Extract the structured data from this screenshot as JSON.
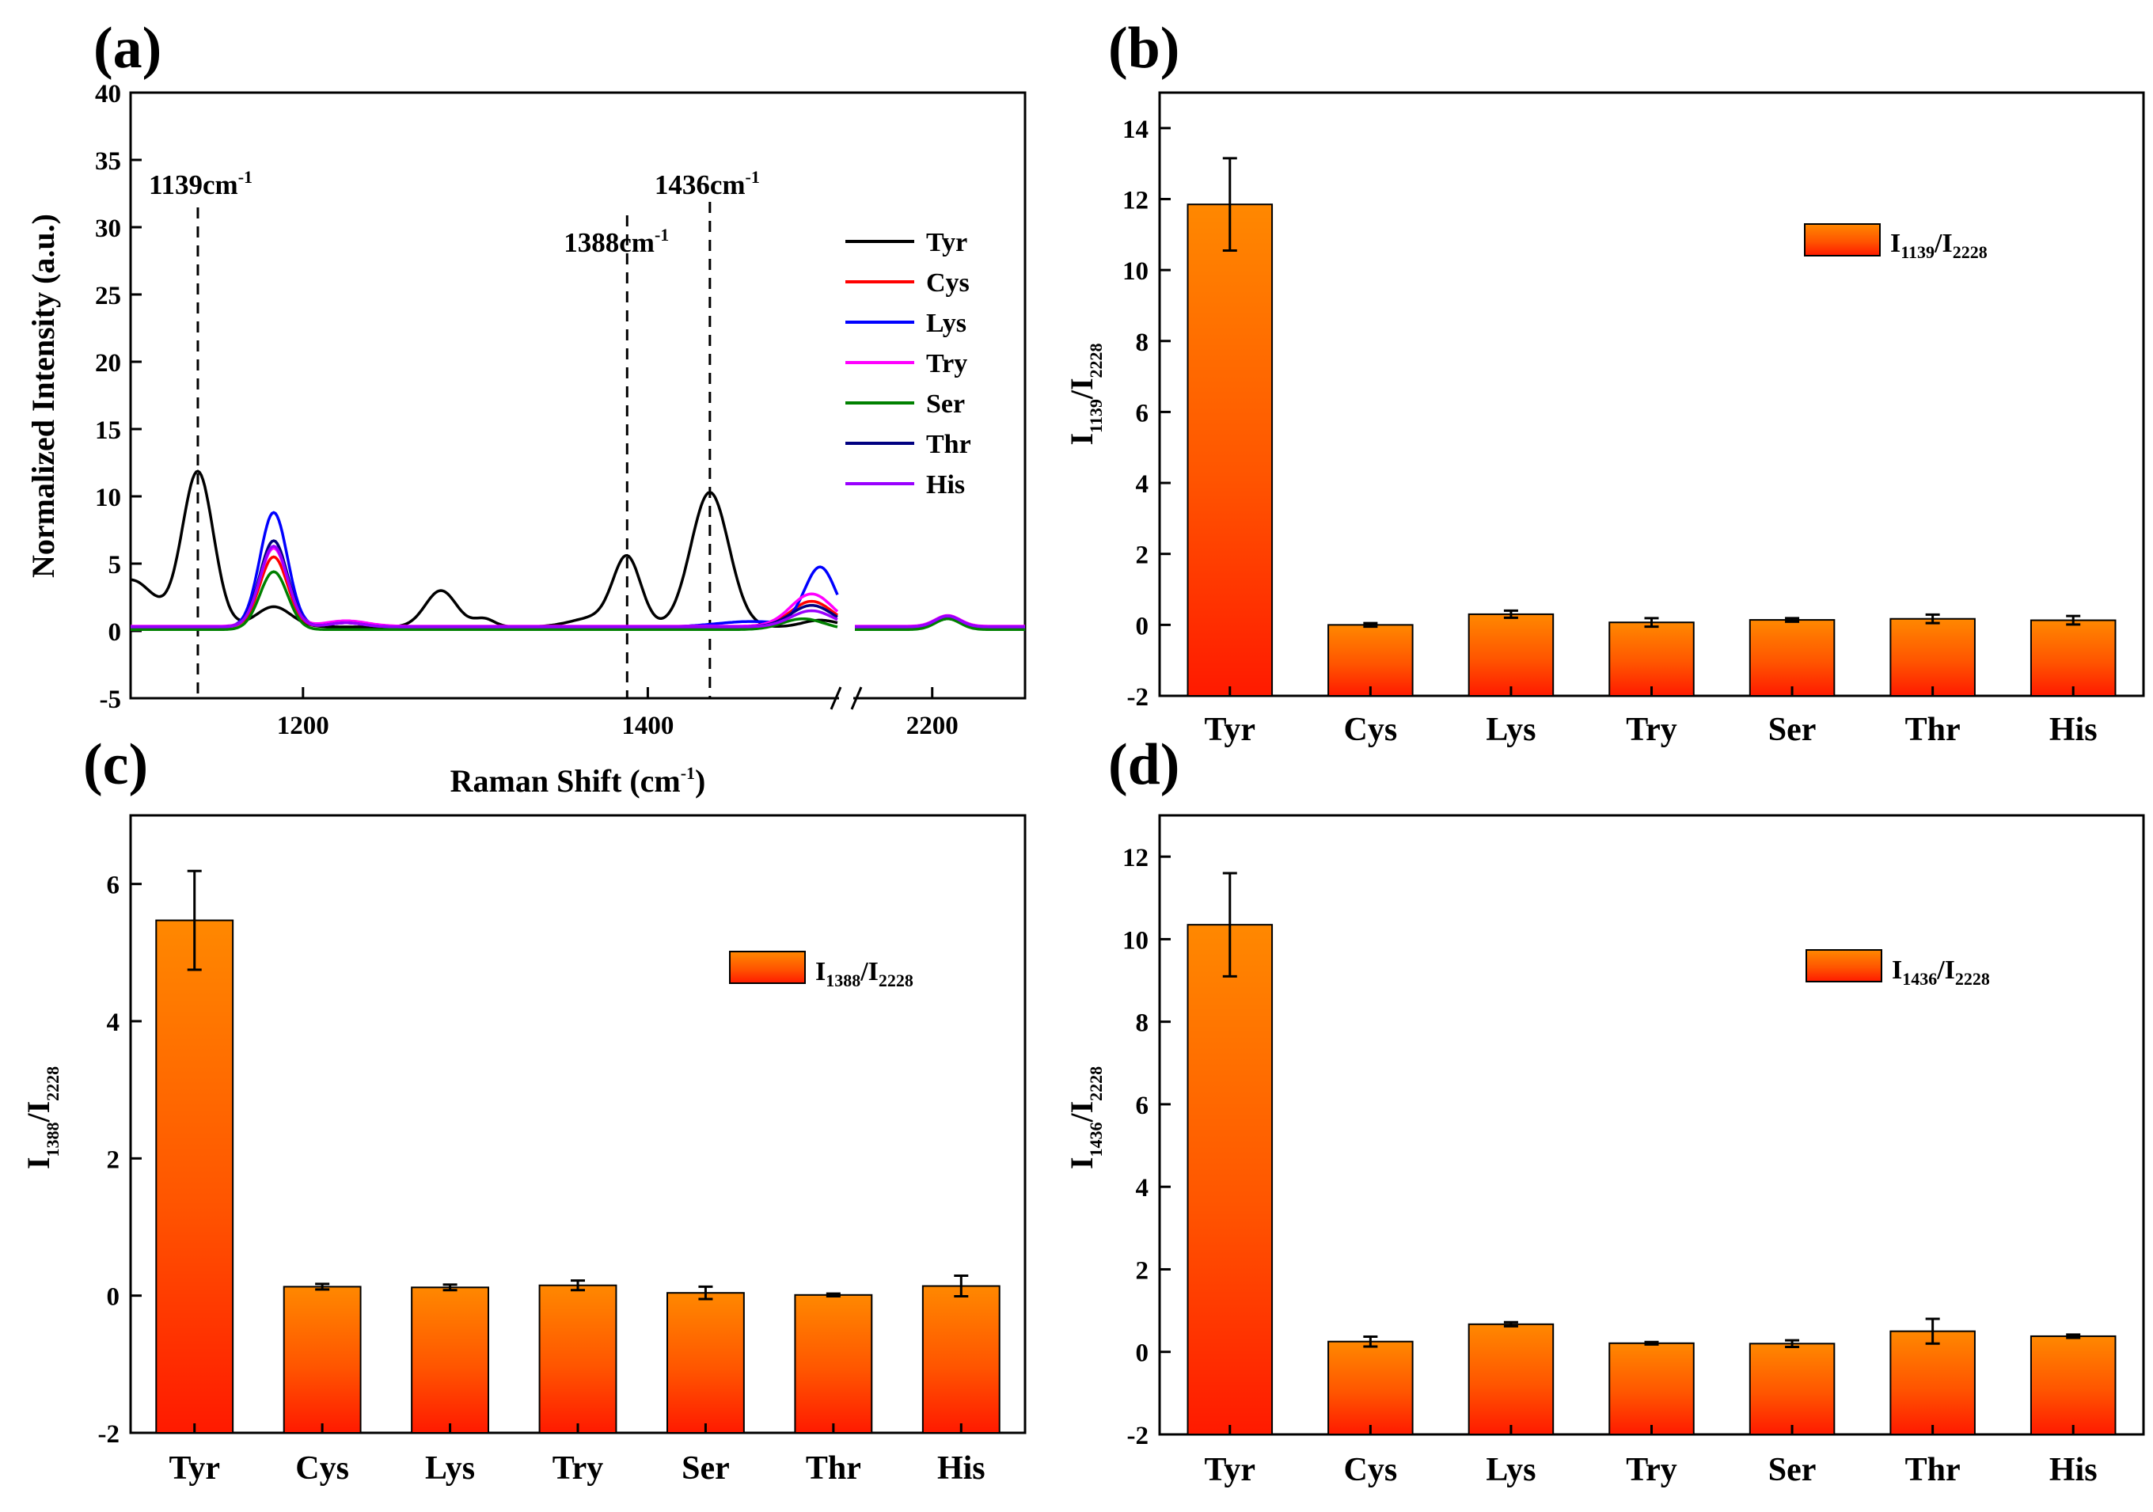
{
  "panels": {
    "a": {
      "label": "(a)",
      "chart_data": {
        "type": "line",
        "xlabel": "Raman Shift (cm",
        "xlabel_sup": "-1",
        "xlabel_close": ")",
        "ylabel": "Normalized Intensity (a.u.)",
        "ylim": [
          -5,
          40
        ],
        "yticks": [
          "-5",
          "0",
          "5",
          "10",
          "15",
          "20",
          "25",
          "30",
          "35",
          "40"
        ],
        "x_segment_1": [
          1100,
          1510
        ],
        "x_segment_2": [
          2150,
          2260
        ],
        "x_break": true,
        "xticks": [
          "1200",
          "1400",
          "2200"
        ],
        "annotations": [
          {
            "x": 1139,
            "text": "1139cm",
            "sup": "-1"
          },
          {
            "x": 1388,
            "text": "1388cm",
            "sup": "-1"
          },
          {
            "x": 1436,
            "text": "1436cm",
            "sup": "-1"
          }
        ],
        "series": [
          {
            "name": "Tyr",
            "color": "#000000",
            "base": 0.3,
            "peaks": [
              [
                1100,
                3.5,
                14
              ],
              [
                1139,
                11.5,
                9
              ],
              [
                1183,
                1.5,
                10
              ],
              [
                1280,
                2.7,
                9
              ],
              [
                1305,
                0.6,
                6
              ],
              [
                1370,
                0.7,
                14
              ],
              [
                1388,
                5.0,
                8
              ],
              [
                1436,
                10.0,
                11
              ],
              [
                1500,
                0.5,
                10
              ]
            ],
            "peaks2": [
              [
                2210,
                0.6,
                8
              ]
            ]
          },
          {
            "name": "Cys",
            "color": "#ff0000",
            "base": 0.3,
            "peaks": [
              [
                1183,
                5.2,
                8
              ],
              [
                1225,
                0.3,
                10
              ],
              [
                1495,
                1.9,
                12
              ]
            ],
            "peaks2": [
              [
                2210,
                0.8,
                8
              ]
            ]
          },
          {
            "name": "Lys",
            "color": "#0000ff",
            "base": 0.3,
            "peaks": [
              [
                1183,
                8.5,
                8
              ],
              [
                1225,
                0.3,
                10
              ],
              [
                1460,
                0.4,
                20
              ],
              [
                1500,
                4.4,
                9
              ]
            ],
            "peaks2": [
              [
                2210,
                0.8,
                8
              ]
            ]
          },
          {
            "name": "Try",
            "color": "#ff00ff",
            "base": 0.35,
            "peaks": [
              [
                1183,
                5.8,
                8
              ],
              [
                1225,
                0.4,
                12
              ],
              [
                1495,
                2.4,
                12
              ]
            ],
            "peaks2": [
              [
                2210,
                0.8,
                8
              ]
            ]
          },
          {
            "name": "Ser",
            "color": "#008000",
            "base": 0.1,
            "peaks": [
              [
                1183,
                4.3,
                8
              ],
              [
                1490,
                0.8,
                12
              ]
            ],
            "peaks2": [
              [
                2210,
                0.8,
                8
              ]
            ]
          },
          {
            "name": "Thr",
            "color": "#000080",
            "base": 0.3,
            "peaks": [
              [
                1183,
                6.4,
                8
              ],
              [
                1225,
                0.3,
                10
              ],
              [
                1495,
                1.6,
                12
              ]
            ],
            "peaks2": [
              [
                2210,
                0.8,
                8
              ]
            ]
          },
          {
            "name": "His",
            "color": "#9900ff",
            "base": 0.3,
            "peaks": [
              [
                1183,
                6.0,
                8
              ],
              [
                1225,
                0.3,
                10
              ],
              [
                1495,
                1.2,
                12
              ]
            ],
            "peaks2": [
              [
                2210,
                0.8,
                8
              ]
            ]
          }
        ]
      }
    },
    "b": {
      "label": "(b)",
      "chart_data": {
        "type": "bar",
        "categories": [
          "Tyr",
          "Cys",
          "Lys",
          "Try",
          "Ser",
          "Thr",
          "His"
        ],
        "values": [
          11.85,
          0.0,
          0.3,
          0.07,
          0.14,
          0.17,
          0.13
        ],
        "errors": [
          1.3,
          0.05,
          0.1,
          0.12,
          0.05,
          0.12,
          0.12
        ],
        "ylim": [
          -2,
          15
        ],
        "yticks": [
          "-2",
          "0",
          "2",
          "4",
          "6",
          "8",
          "10",
          "12",
          "14"
        ],
        "ylabel_main": "I",
        "ylabel_sub1": "1139",
        "ylabel_mid": "/I",
        "ylabel_sub2": "2228",
        "legend_main": "I",
        "legend_sub1": "1139",
        "legend_mid": "/I",
        "legend_sub2": "2228",
        "legend_position": "top-right"
      }
    },
    "c": {
      "label": "(c)",
      "chart_data": {
        "type": "bar",
        "categories": [
          "Tyr",
          "Cys",
          "Lys",
          "Try",
          "Ser",
          "Thr",
          "His"
        ],
        "values": [
          5.47,
          0.13,
          0.12,
          0.15,
          0.04,
          0.01,
          0.14
        ],
        "errors": [
          0.72,
          0.04,
          0.04,
          0.07,
          0.09,
          0.02,
          0.15
        ],
        "ylim": [
          -2,
          7
        ],
        "yticks": [
          "-2",
          "0",
          "2",
          "4",
          "6"
        ],
        "ylabel_main": "I",
        "ylabel_sub1": "1388",
        "ylabel_mid": "/I",
        "ylabel_sub2": "2228",
        "legend_main": "I",
        "legend_sub1": "1388",
        "legend_mid": "/I",
        "legend_sub2": "2228",
        "legend_position": "top-right"
      }
    },
    "d": {
      "label": "(d)",
      "chart_data": {
        "type": "bar",
        "categories": [
          "Tyr",
          "Cys",
          "Lys",
          "Try",
          "Ser",
          "Thr",
          "His"
        ],
        "values": [
          10.35,
          0.25,
          0.67,
          0.21,
          0.2,
          0.5,
          0.38
        ],
        "errors": [
          1.25,
          0.12,
          0.05,
          0.03,
          0.08,
          0.3,
          0.04
        ],
        "ylim": [
          -2,
          13
        ],
        "yticks": [
          "-2",
          "0",
          "2",
          "4",
          "6",
          "8",
          "10",
          "12"
        ],
        "ylabel_main": "I",
        "ylabel_sub1": "1436",
        "ylabel_mid": "/I",
        "ylabel_sub2": "2228",
        "legend_main": "I",
        "legend_sub1": "1436",
        "legend_mid": "/I",
        "legend_sub2": "2228",
        "legend_position": "top-right"
      }
    }
  }
}
